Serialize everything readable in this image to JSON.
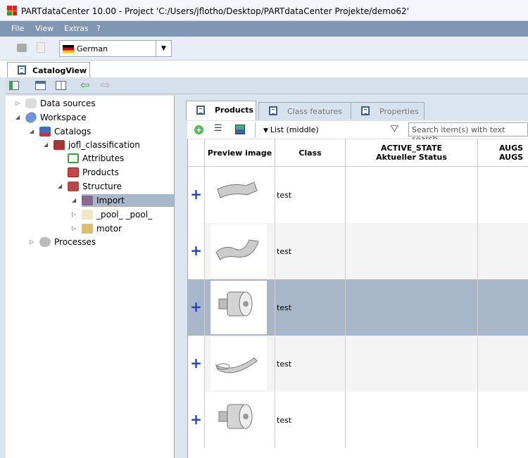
{
  "window": {
    "title": "PARTdataCenter 10.00 - Project 'C:/Users/jflotho/Desktop/PARTdataCenter Projekte/demo62'"
  },
  "menu": [
    "File",
    "View",
    "Extras",
    "?"
  ],
  "toolbar": {
    "language": "German"
  },
  "view_tab": "CatalogView",
  "tree": [
    {
      "label": "Data sources",
      "level": 0,
      "expander": "collapsed",
      "icon": "database-icon"
    },
    {
      "label": "Workspace",
      "level": 0,
      "expander": "expanded",
      "icon": "workspace-icon"
    },
    {
      "label": "Catalogs",
      "level": 1,
      "expander": "expanded",
      "icon": "catalogs-icon"
    },
    {
      "label": "jofl_classification",
      "level": 2,
      "expander": "expanded",
      "icon": "catalog-book-icon"
    },
    {
      "label": "Attributes",
      "level": 3,
      "expander": "none",
      "icon": "attributes-icon"
    },
    {
      "label": "Products",
      "level": 3,
      "expander": "none",
      "icon": "products-icon"
    },
    {
      "label": "Structure",
      "level": 3,
      "expander": "expanded",
      "icon": "structure-folder-icon"
    },
    {
      "label": "Import",
      "level": 4,
      "expander": "expanded",
      "icon": "folder-icon",
      "selected": true
    },
    {
      "label": "_pool_ _pool_",
      "level": 4,
      "expander": "collapsed",
      "icon": "folder-icon"
    },
    {
      "label": "motor",
      "level": 4,
      "expander": "collapsed",
      "icon": "folder-icon"
    },
    {
      "label": "Processes",
      "level": 0,
      "expander": "collapsed",
      "icon": "gear-icon"
    }
  ],
  "panel_tabs": [
    {
      "label": "Products",
      "active": true
    },
    {
      "label": "Class features"
    },
    {
      "label": "Properties"
    }
  ],
  "panel_toolbar": {
    "view_mode": "List (middle)",
    "search_placeholder": "Search item(s) with text search"
  },
  "table": {
    "columns": [
      {
        "line1": "Preview image"
      },
      {
        "line1": "Class"
      },
      {
        "line1": "ACTIVE_STATE",
        "line2": "Aktueller Status"
      },
      {
        "line1": "AUGS",
        "line2": "AUGS"
      }
    ],
    "rows": [
      {
        "class": "test",
        "preview": "bent-tube"
      },
      {
        "class": "test",
        "preview": "curved-tube"
      },
      {
        "class": "test",
        "preview": "cylinder-fitting",
        "selected": true
      },
      {
        "class": "test",
        "preview": "hook"
      },
      {
        "class": "test",
        "preview": "cylinder-fitting"
      }
    ]
  },
  "colors": {
    "menubar": "#7f97b3",
    "selection": "#a8b8ca",
    "plus": "#1a3fd8"
  }
}
